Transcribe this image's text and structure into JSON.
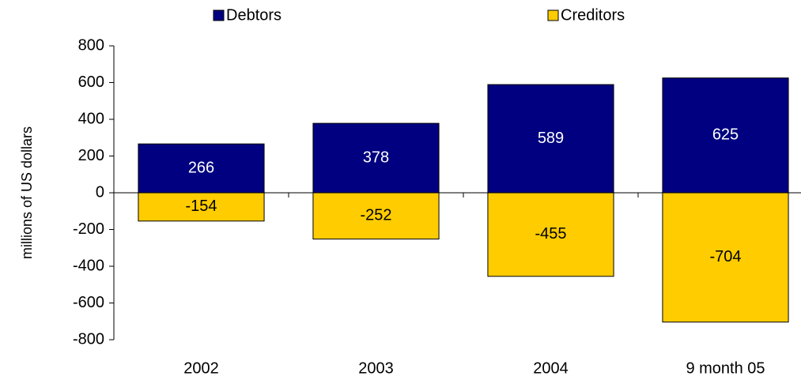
{
  "chart_data": {
    "type": "bar",
    "y_label": "millions of US dollars",
    "categories": [
      "2002",
      "2003",
      "2004",
      "9 month 05"
    ],
    "series": [
      {
        "name": "Debtors",
        "color": "#000080",
        "values": [
          266,
          378,
          589,
          625
        ]
      },
      {
        "name": "Creditors",
        "color": "#FFCC00",
        "values": [
          -154,
          -252,
          -455,
          -704
        ]
      }
    ],
    "ylim": [
      -800,
      800
    ],
    "yticks": [
      -800,
      -600,
      -400,
      -200,
      0,
      200,
      400,
      600,
      800
    ],
    "legend": "top"
  }
}
